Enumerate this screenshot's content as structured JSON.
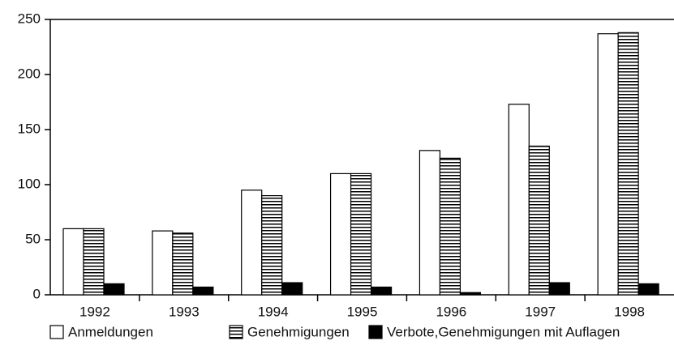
{
  "chart_data": {
    "type": "bar",
    "categories": [
      "1992",
      "1993",
      "1994",
      "1995",
      "1996",
      "1997",
      "1998"
    ],
    "series": [
      {
        "name": "Anmeldungen",
        "color": "#ffffff",
        "values": [
          60,
          58,
          95,
          110,
          131,
          173,
          237
        ]
      },
      {
        "name": "Genehmigungen",
        "color": "#ffffff",
        "pattern": "horizontal-lines",
        "values": [
          60,
          56,
          90,
          110,
          124,
          135,
          238
        ]
      },
      {
        "name": "Verbote,Genehmigungen mit Auflagen",
        "color": "#000000",
        "values": [
          10,
          7,
          11,
          7,
          2,
          11,
          10
        ]
      }
    ],
    "ylim": [
      0,
      250
    ],
    "yticks": [
      0,
      50,
      100,
      150,
      200,
      250
    ],
    "grid": false,
    "legend": "bottom"
  }
}
